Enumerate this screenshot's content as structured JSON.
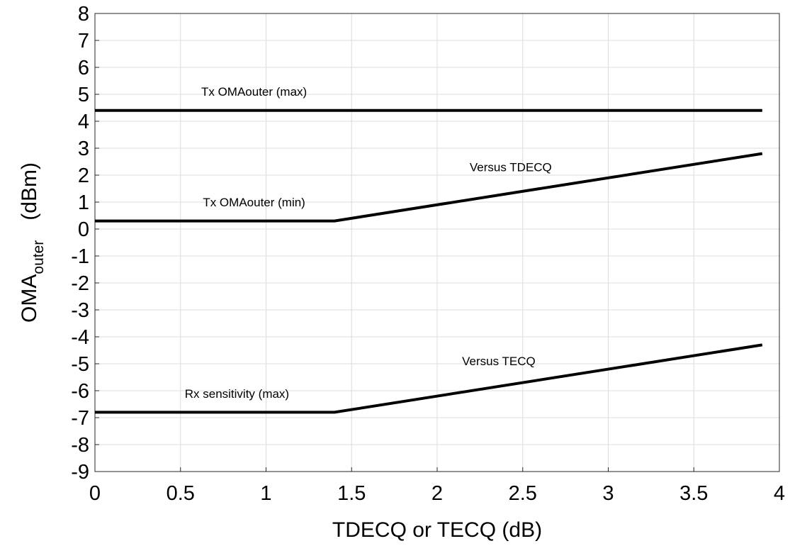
{
  "chart_data": {
    "type": "line",
    "title": "",
    "xlabel": "TDECQ or TECQ (dB)",
    "ylabel": {
      "main": "OMA",
      "subscript": "outer",
      "unit": "(dBm)"
    },
    "xlim": [
      0,
      4
    ],
    "ylim": [
      -9,
      8
    ],
    "grid": true,
    "x_ticks": [
      "0",
      "0.5",
      "1",
      "1.5",
      "2",
      "2.5",
      "3",
      "3.5",
      "4"
    ],
    "y_ticks": [
      "8",
      "7",
      "6",
      "5",
      "4",
      "3",
      "2",
      "1",
      "0",
      "-1",
      "-2",
      "-3",
      "-4",
      "-5",
      "-6",
      "-7",
      "-8",
      "-9"
    ],
    "series": [
      {
        "x": [
          0,
          3.9
        ],
        "y": [
          4.4,
          4.4
        ]
      },
      {
        "x": [
          0,
          1.4,
          3.9
        ],
        "y": [
          0.3,
          0.3,
          2.8
        ]
      },
      {
        "x": [
          0,
          1.4,
          3.9
        ],
        "y": [
          -6.8,
          -6.8,
          -4.3
        ]
      }
    ],
    "annotations": [
      {
        "text": "Tx OMAouter (max)",
        "x": 0.93,
        "y": 5.1
      },
      {
        "text": "Tx OMAouter (min)",
        "x": 0.93,
        "y": 1.0
      },
      {
        "text": "Versus TDECQ",
        "x": 2.43,
        "y": 2.3
      },
      {
        "text": "Versus TECQ",
        "x": 2.36,
        "y": -4.9
      },
      {
        "text": "Rx sensitivity (max)",
        "x": 0.83,
        "y": -6.1
      }
    ]
  }
}
